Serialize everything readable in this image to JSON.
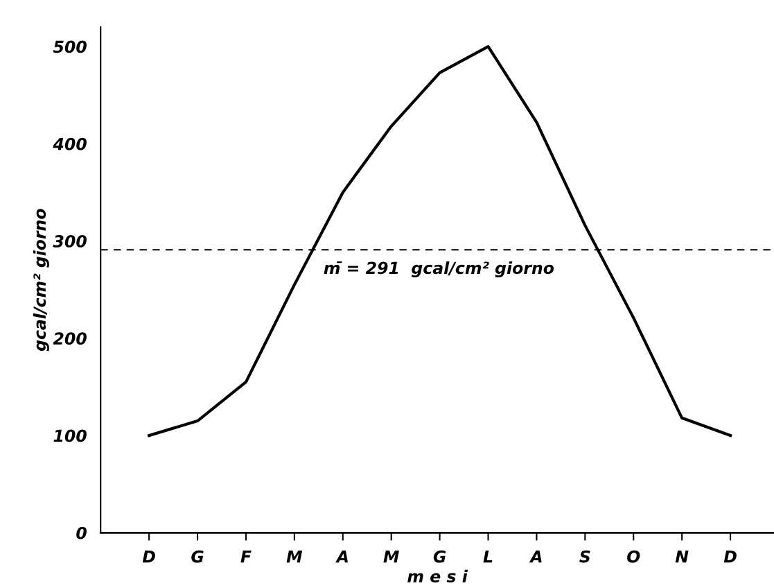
{
  "chart_data": {
    "type": "line",
    "xlabel": "m e s i",
    "ylabel": "gcal/cm² giorno",
    "categories": [
      "D",
      "G",
      "F",
      "M",
      "A",
      "M",
      "G",
      "L",
      "A",
      "S",
      "O",
      "N",
      "D"
    ],
    "series": [
      {
        "color": "#000000",
        "values": [
          100,
          115,
          155,
          255,
          350,
          418,
          473,
          500,
          422,
          316,
          221,
          118,
          100
        ]
      }
    ],
    "ylim": [
      0,
      520
    ],
    "yticks": [
      0,
      100,
      200,
      300,
      400,
      500
    ],
    "ref_lines": [
      {
        "axis": "y",
        "value": 291,
        "label": "m̄ = 291  gcal/cm² giorno",
        "line_style": "dashed",
        "color": "#000000"
      }
    ],
    "grid": false,
    "legend": false,
    "marker": "none",
    "line_style": "solid"
  }
}
